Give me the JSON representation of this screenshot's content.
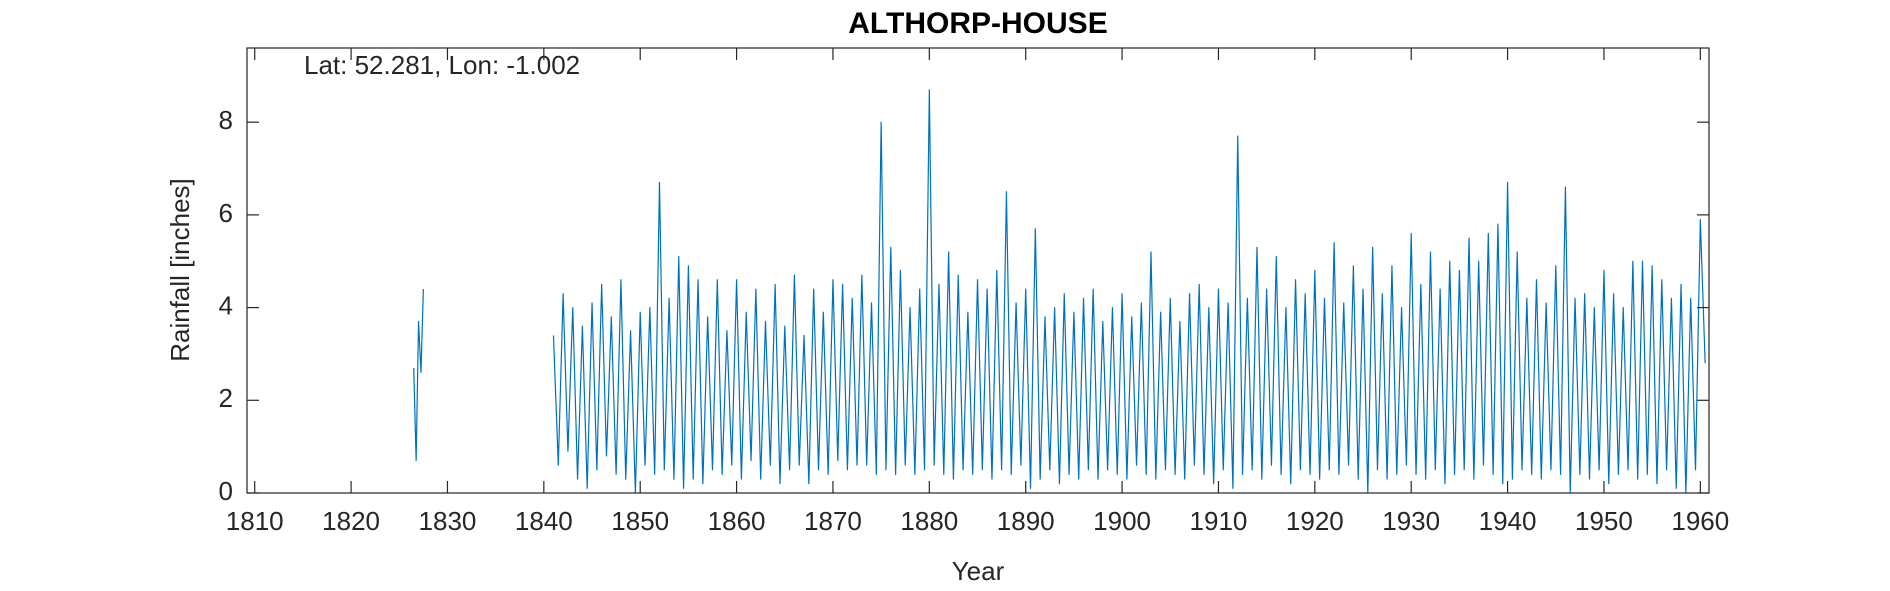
{
  "chart_data": {
    "type": "line",
    "title": "ALTHORP-HOUSE",
    "annotation": "Lat: 52.281, Lon: -1.002",
    "xlabel": "Year",
    "ylabel": "Rainfall [inches]",
    "color": "#0072bd",
    "xlim": [
      1809.2,
      1960.9
    ],
    "ylim": [
      0,
      9.6
    ],
    "xticks": [
      1810,
      1820,
      1830,
      1840,
      1850,
      1860,
      1870,
      1880,
      1890,
      1900,
      1910,
      1920,
      1930,
      1940,
      1950,
      1960
    ],
    "yticks": [
      0,
      2,
      4,
      6,
      8
    ],
    "x": [
      1826.5,
      1826.75,
      1827,
      1827.25,
      1827.5,
      1834,
      1841,
      1841.5,
      1842,
      1842.5,
      1843,
      1843.5,
      1844,
      1844.5,
      1845,
      1845.5,
      1846,
      1846.5,
      1847,
      1847.5,
      1848,
      1848.5,
      1849,
      1849.5,
      1850,
      1850.5,
      1851,
      1851.5,
      1852,
      1852.5,
      1853,
      1853.5,
      1854,
      1854.5,
      1855,
      1855.5,
      1856,
      1856.5,
      1857,
      1857.5,
      1858,
      1858.5,
      1859,
      1859.5,
      1860,
      1860.5,
      1861,
      1861.5,
      1862,
      1862.5,
      1863,
      1863.5,
      1864,
      1864.5,
      1865,
      1865.5,
      1866,
      1866.5,
      1867,
      1867.5,
      1868,
      1868.5,
      1869,
      1869.5,
      1870,
      1870.5,
      1871,
      1871.5,
      1872,
      1872.5,
      1873,
      1873.5,
      1874,
      1874.5,
      1875,
      1875.5,
      1876,
      1876.5,
      1877,
      1877.5,
      1878,
      1878.5,
      1879,
      1879.5,
      1880,
      1880.5,
      1881,
      1881.5,
      1882,
      1882.5,
      1883,
      1883.5,
      1884,
      1884.5,
      1885,
      1885.5,
      1886,
      1886.5,
      1887,
      1887.5,
      1888,
      1888.5,
      1889,
      1889.5,
      1890,
      1890.5,
      1891,
      1891.5,
      1892,
      1892.5,
      1893,
      1893.5,
      1894,
      1894.5,
      1895,
      1895.5,
      1896,
      1896.5,
      1897,
      1897.5,
      1898,
      1898.5,
      1899,
      1899.5,
      1900,
      1900.5,
      1901,
      1901.5,
      1902,
      1902.5,
      1903,
      1903.5,
      1904,
      1904.5,
      1905,
      1905.5,
      1906,
      1906.5,
      1907,
      1907.5,
      1908,
      1908.5,
      1909,
      1909.5,
      1910,
      1910.5,
      1911,
      1911.5,
      1912,
      1912.5,
      1913,
      1913.5,
      1914,
      1914.5,
      1915,
      1915.5,
      1916,
      1916.5,
      1917,
      1917.5,
      1918,
      1918.5,
      1919,
      1919.5,
      1920,
      1920.5,
      1921,
      1921.5,
      1922,
      1922.5,
      1923,
      1923.5,
      1924,
      1924.5,
      1925,
      1925.5,
      1926,
      1926.5,
      1927,
      1927.5,
      1928,
      1928.5,
      1929,
      1929.5,
      1930,
      1930.5,
      1931,
      1931.5,
      1932,
      1932.5,
      1933,
      1933.5,
      1934,
      1934.5,
      1935,
      1935.5,
      1936,
      1936.5,
      1937,
      1937.5,
      1938,
      1938.5,
      1939,
      1939.5,
      1940,
      1940.5,
      1941,
      1941.5,
      1942,
      1942.5,
      1943,
      1943.5,
      1944,
      1944.5,
      1945,
      1945.5,
      1946,
      1946.5,
      1947,
      1947.5,
      1948,
      1948.5,
      1949,
      1949.5,
      1950,
      1950.5,
      1951,
      1951.5,
      1952,
      1952.5,
      1953,
      1953.5,
      1954,
      1954.5,
      1955,
      1955.5,
      1956,
      1956.5,
      1957,
      1957.5,
      1958,
      1958.5,
      1959,
      1959.5,
      1960,
      1960.5
    ],
    "values": [
      2.7,
      0.7,
      3.7,
      2.6,
      4.4,
      null,
      3.4,
      0.6,
      4.3,
      0.9,
      4.0,
      0.3,
      3.6,
      0.1,
      4.1,
      0.5,
      4.5,
      0.8,
      3.8,
      0.4,
      4.6,
      0.3,
      3.5,
      0.0,
      3.9,
      0.6,
      4.0,
      0.4,
      6.7,
      0.5,
      4.2,
      0.3,
      5.1,
      0.1,
      4.9,
      0.3,
      4.6,
      0.2,
      3.8,
      0.5,
      4.6,
      0.4,
      3.5,
      0.6,
      4.6,
      0.3,
      3.9,
      0.7,
      4.4,
      0.3,
      3.7,
      0.6,
      4.5,
      0.2,
      3.6,
      0.5,
      4.7,
      0.6,
      3.4,
      0.2,
      4.4,
      0.5,
      3.9,
      0.4,
      4.6,
      0.7,
      4.5,
      0.5,
      4.2,
      0.6,
      4.7,
      0.6,
      4.1,
      0.4,
      8.0,
      0.5,
      5.3,
      0.4,
      4.8,
      0.6,
      4.0,
      0.4,
      4.4,
      0.5,
      8.7,
      0.6,
      4.5,
      0.4,
      5.2,
      0.3,
      4.7,
      0.5,
      3.9,
      0.4,
      4.6,
      0.5,
      4.4,
      0.3,
      4.8,
      0.5,
      6.5,
      0.4,
      4.1,
      0.6,
      4.4,
      0.1,
      5.7,
      0.3,
      3.8,
      0.5,
      4.0,
      0.2,
      4.3,
      0.4,
      3.9,
      0.3,
      4.2,
      0.5,
      4.4,
      0.3,
      3.7,
      0.5,
      4.0,
      0.4,
      4.3,
      0.3,
      3.8,
      0.6,
      4.1,
      0.4,
      5.2,
      0.3,
      3.9,
      0.5,
      4.2,
      0.4,
      3.7,
      0.3,
      4.3,
      0.6,
      4.5,
      0.4,
      4.0,
      0.2,
      4.4,
      0.5,
      4.1,
      0.1,
      7.7,
      0.4,
      4.2,
      0.5,
      5.3,
      0.3,
      4.4,
      0.6,
      5.1,
      0.4,
      4.0,
      0.2,
      4.6,
      0.5,
      4.3,
      0.4,
      4.8,
      0.3,
      4.2,
      0.5,
      5.4,
      0.4,
      4.1,
      0.6,
      4.9,
      0.3,
      4.4,
      0.0,
      5.3,
      0.5,
      4.3,
      0.3,
      4.9,
      0.4,
      4.0,
      0.6,
      5.6,
      0.4,
      4.5,
      0.3,
      5.2,
      0.5,
      4.4,
      0.2,
      5.0,
      0.4,
      4.8,
      0.5,
      5.5,
      0.3,
      5.0,
      0.6,
      5.6,
      0.4,
      5.8,
      0.2,
      6.7,
      0.3,
      5.2,
      0.5,
      4.2,
      0.4,
      4.6,
      0.3,
      4.1,
      0.5,
      4.9,
      0.4,
      6.6,
      0.0,
      4.2,
      0.4,
      4.3,
      0.3,
      4.0,
      0.5,
      4.8,
      0.2,
      4.3,
      0.4,
      4.0,
      0.5,
      5.0,
      0.3,
      5.0,
      0.4,
      4.9,
      0.2,
      4.6,
      0.5,
      4.2,
      0.1,
      4.5,
      0.0,
      4.2,
      0.5,
      5.9,
      2.8
    ]
  }
}
